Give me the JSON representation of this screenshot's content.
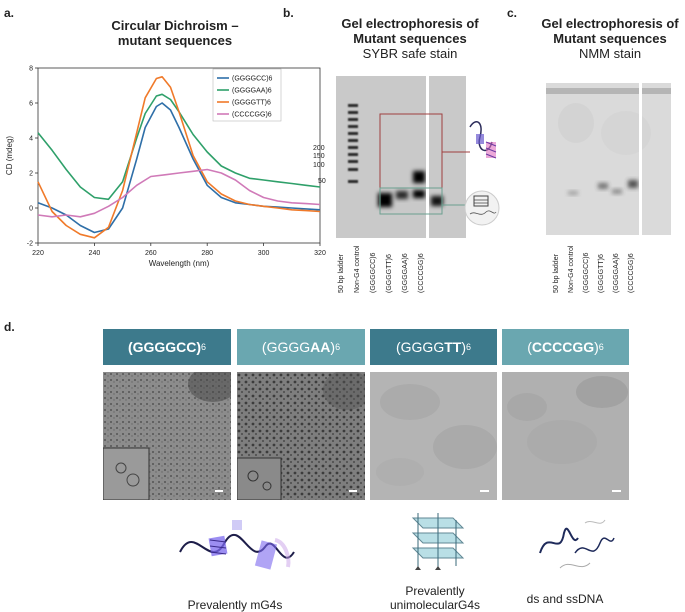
{
  "panel_a": {
    "label": "a.",
    "title_line1": "Circular Dichroism –",
    "title_line2": "mutant sequences"
  },
  "chart_data": {
    "type": "line",
    "title": "Circular Dichroism – mutant sequences",
    "xlabel": "Wavelength (nm)",
    "ylabel": "CD (mdeg)",
    "xlim": [
      220,
      320
    ],
    "ylim": [
      -2,
      8
    ],
    "xticks": [
      "220",
      "240",
      "260",
      "280",
      "300",
      "320"
    ],
    "yticks": [
      "-2",
      "0",
      "2",
      "4",
      "6",
      "8"
    ],
    "legend_position": "top-right",
    "series": [
      {
        "name": "(GGGGCC)6",
        "color": "#2f6fa8",
        "x": [
          220,
          225,
          230,
          235,
          240,
          245,
          250,
          255,
          258,
          262,
          264,
          267,
          270,
          275,
          280,
          285,
          290,
          295,
          300,
          305,
          310,
          315,
          320
        ],
        "y": [
          0.3,
          0,
          -0.4,
          -1,
          -1.4,
          -1.2,
          0,
          2.8,
          4.6,
          5.8,
          6.0,
          5.6,
          4.6,
          2.8,
          1.3,
          0.6,
          0.3,
          0.2,
          0.1,
          0.05,
          0,
          -0.05,
          -0.1
        ]
      },
      {
        "name": "(GGGGAA)6",
        "color": "#2fa06a",
        "x": [
          220,
          225,
          230,
          235,
          240,
          245,
          250,
          255,
          258,
          262,
          264,
          267,
          270,
          275,
          280,
          285,
          290,
          295,
          300,
          305,
          310,
          315,
          320
        ],
        "y": [
          4.3,
          3.3,
          2.2,
          1.2,
          0.6,
          0.5,
          1.5,
          4.0,
          5.4,
          6.4,
          6.5,
          6.2,
          5.5,
          4.2,
          3.2,
          2.4,
          2.0,
          1.7,
          1.6,
          1.5,
          1.4,
          1.3,
          1.2
        ]
      },
      {
        "name": "(GGGGTT)6",
        "color": "#f07a2a",
        "x": [
          220,
          225,
          230,
          235,
          240,
          245,
          250,
          255,
          258,
          262,
          264,
          267,
          270,
          275,
          280,
          285,
          290,
          295,
          300,
          305,
          310,
          315,
          320
        ],
        "y": [
          1.5,
          -0.2,
          -1,
          -1.5,
          -1.7,
          -1.1,
          1,
          4.3,
          6.3,
          7.4,
          7.5,
          6.9,
          5.5,
          3,
          1.5,
          0.8,
          0.4,
          0.2,
          0.1,
          0,
          -0.1,
          -0.15,
          -0.2
        ]
      },
      {
        "name": "(CCCCGG)6",
        "color": "#d07ab8",
        "x": [
          220,
          225,
          230,
          235,
          240,
          245,
          250,
          255,
          260,
          265,
          270,
          275,
          280,
          285,
          290,
          295,
          300,
          305,
          310,
          315,
          320
        ],
        "y": [
          -0.4,
          -0.5,
          -0.4,
          -0.5,
          -0.3,
          0.1,
          0.6,
          1.3,
          1.8,
          1.9,
          2.0,
          2.1,
          2.2,
          2.0,
          1.6,
          1.0,
          0.6,
          0.4,
          0.3,
          0.25,
          0.2
        ]
      }
    ]
  },
  "panel_b": {
    "label": "b.",
    "title_line1": "Gel electrophoresis of",
    "title_line2": "Mutant sequences",
    "subtitle": "SYBR safe stain",
    "size_markers": [
      "200",
      "150",
      "100",
      "50"
    ],
    "lanes": [
      "50 bp ladder",
      "Non-G4 control",
      "(GGGGCC)6",
      "(GGGGTT)6",
      "(GGGGAA)6",
      "(CCCCGG)6"
    ]
  },
  "panel_c": {
    "label": "c.",
    "title_line1": "Gel electrophoresis of",
    "title_line2": "Mutant sequences",
    "subtitle": "NMM stain",
    "lanes": [
      "50 bp ladder",
      "Non-G4 control",
      "(GGGGCC)6",
      "(GGGGTT)6",
      "(GGGGAA)6",
      "(CCCCGG)6"
    ]
  },
  "panel_d": {
    "label": "d.",
    "sequences": [
      {
        "prefix": "(GGGGCC)",
        "suffix": "6",
        "color": "#3d7a8c"
      },
      {
        "prefix": "(GGGG",
        "bold": "AA",
        "end": ")",
        "suffix": "6",
        "color": "#6aa7b0"
      },
      {
        "prefix": "(GGGG",
        "bold": "TT",
        "end": ")",
        "suffix": "6",
        "color": "#3d7a8c"
      },
      {
        "prefix": "(",
        "bold": "CCCCGG",
        "end": ")",
        "suffix": "6",
        "color": "#6aa7b0"
      }
    ],
    "captions": {
      "left": "Prevalently mG4s",
      "middle_line1": "Prevalently",
      "middle_line2": "unimolecularG4s",
      "right": "ds and ssDNA"
    }
  }
}
